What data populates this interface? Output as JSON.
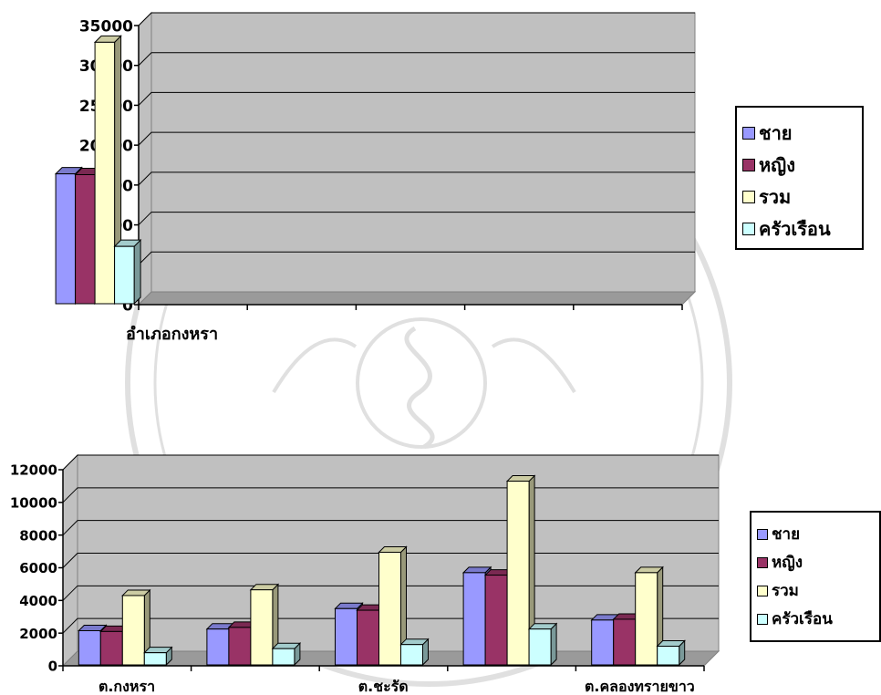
{
  "chart_data": [
    {
      "type": "bar",
      "title": "",
      "xlabel": "",
      "ylabel": "",
      "categories": [
        "อำเภอกงหรา"
      ],
      "series": [
        {
          "name": "ชาย",
          "color": "#9999ff",
          "values": [
            16400
          ]
        },
        {
          "name": "หญิง",
          "color": "#993366",
          "values": [
            16300
          ]
        },
        {
          "name": "รวม",
          "color": "#ffffcc",
          "values": [
            32900
          ]
        },
        {
          "name": "ครัวเรือน",
          "color": "#ccffff",
          "values": [
            7300
          ]
        }
      ],
      "ylim": [
        0,
        35000
      ],
      "yticks": [
        "0",
        "5000",
        "10000",
        "15000",
        "20000",
        "25000",
        "30000",
        "35000"
      ],
      "x_slots": 5,
      "grid": true,
      "style": "3d-clustered-column",
      "legend": "right"
    },
    {
      "type": "bar",
      "title": "",
      "xlabel": "",
      "ylabel": "",
      "categories": [
        "ต.กงหรา",
        "",
        "ต.ชะรัด",
        "",
        "ต.คลองทรายขาว"
      ],
      "series": [
        {
          "name": "ชาย",
          "color": "#9999ff",
          "values": [
            2150,
            2250,
            3500,
            5700,
            2800
          ]
        },
        {
          "name": "หญิง",
          "color": "#993366",
          "values": [
            2100,
            2350,
            3400,
            5550,
            2850
          ]
        },
        {
          "name": "รวม",
          "color": "#ffffcc",
          "values": [
            4300,
            4650,
            6950,
            11300,
            5700
          ]
        },
        {
          "name": "ครัวเรือน",
          "color": "#ccffff",
          "values": [
            800,
            1050,
            1300,
            2250,
            1200
          ]
        }
      ],
      "ylim": [
        0,
        12000
      ],
      "yticks": [
        "0",
        "2000",
        "4000",
        "6000",
        "8000",
        "10000",
        "12000"
      ],
      "grid": true,
      "style": "3d-clustered-column",
      "legend": "right"
    }
  ]
}
